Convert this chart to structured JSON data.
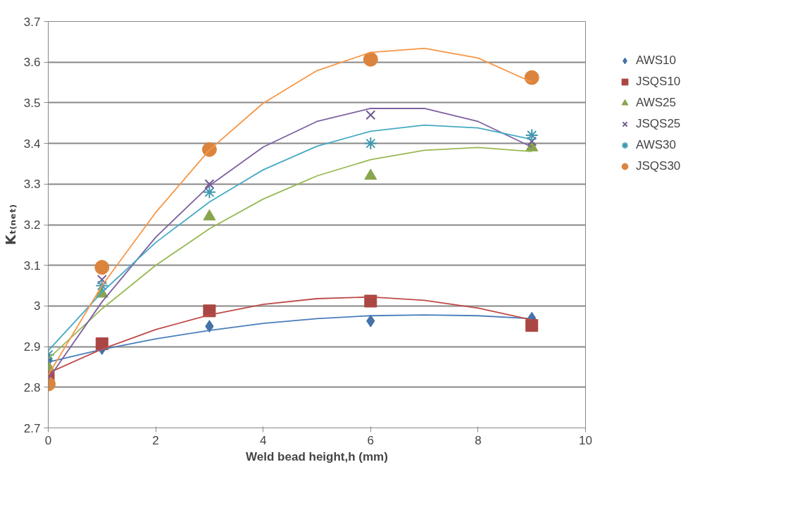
{
  "chart_data": {
    "type": "scatter",
    "xlabel": "Weld bead height,h (mm)",
    "ylabel": "Kₜ₍ₙₑₜ₎",
    "xlim": [
      0,
      10
    ],
    "ylim": [
      2.7,
      3.7
    ],
    "xticks": [
      0,
      2,
      4,
      6,
      8,
      10
    ],
    "yticks": [
      2.7,
      2.8,
      2.9,
      3,
      3.1,
      3.2,
      3.3,
      3.4,
      3.5,
      3.6,
      3.7
    ],
    "grid": "y",
    "legend": "right",
    "x": [
      0,
      1,
      3,
      6,
      9
    ],
    "series": [
      {
        "name": "AWS10",
        "color": "#4572a7",
        "marker": "diamond",
        "values": [
          2.866,
          2.895,
          2.95,
          2.963,
          2.97
        ]
      },
      {
        "name": "JSQS10",
        "color": "#aa4643",
        "marker": "square",
        "values": [
          2.825,
          2.907,
          2.988,
          3.012,
          2.952
        ]
      },
      {
        "name": "AWS25",
        "color": "#89a54e",
        "marker": "triangle",
        "values": [
          2.85,
          3.03,
          3.22,
          3.32,
          3.39
        ]
      },
      {
        "name": "JSQS25",
        "color": "#71588f",
        "marker": "cross",
        "values": [
          null,
          3.065,
          3.3,
          3.47,
          3.405
        ]
      },
      {
        "name": "AWS30",
        "color": "#4198af",
        "marker": "cross",
        "values": [
          2.88,
          3.05,
          3.28,
          3.4,
          3.42
        ]
      },
      {
        "name": "JSQS30",
        "color": "#db843d",
        "marker": "circle",
        "values": [
          2.808,
          3.095,
          3.385,
          3.607,
          3.562
        ]
      },
      {
        "type": "line",
        "color": "#4a7ebb",
        "x": [
          0,
          1,
          2,
          3,
          4,
          5,
          6,
          7,
          8,
          9
        ],
        "values": [
          2.862,
          2.893,
          2.919,
          2.94,
          2.957,
          2.969,
          2.976,
          2.978,
          2.976,
          2.969
        ]
      },
      {
        "type": "line",
        "color": "#be4b48",
        "x": [
          0,
          1,
          2,
          3,
          4,
          5,
          6,
          7,
          8,
          9
        ],
        "values": [
          2.835,
          2.894,
          2.942,
          2.978,
          3.004,
          3.018,
          3.022,
          3.014,
          2.995,
          2.966
        ]
      },
      {
        "type": "line",
        "color": "#98b954",
        "x": [
          0,
          1,
          2,
          3,
          4,
          5,
          6,
          7,
          8,
          9
        ],
        "values": [
          2.87,
          2.993,
          3.1,
          3.19,
          3.263,
          3.32,
          3.36,
          3.383,
          3.39,
          3.38
        ]
      },
      {
        "type": "line",
        "color": "#7d60a0",
        "x": [
          0,
          1,
          2,
          3,
          4,
          5,
          6,
          7,
          8,
          9
        ],
        "values": [
          2.82,
          3.01,
          3.169,
          3.296,
          3.391,
          3.454,
          3.486,
          3.486,
          3.454,
          3.391
        ]
      },
      {
        "type": "line",
        "color": "#46aac5",
        "x": [
          0,
          1,
          2,
          3,
          4,
          5,
          6,
          7,
          8,
          9
        ],
        "values": [
          2.89,
          3.034,
          3.156,
          3.256,
          3.335,
          3.393,
          3.43,
          3.445,
          3.438,
          3.41
        ]
      },
      {
        "type": "line",
        "color": "#f79646",
        "x": [
          0,
          1,
          2,
          3,
          4,
          5,
          6,
          7,
          8,
          9
        ],
        "values": [
          2.83,
          3.05,
          3.23,
          3.384,
          3.499,
          3.579,
          3.624,
          3.634,
          3.61,
          3.551
        ]
      }
    ]
  }
}
